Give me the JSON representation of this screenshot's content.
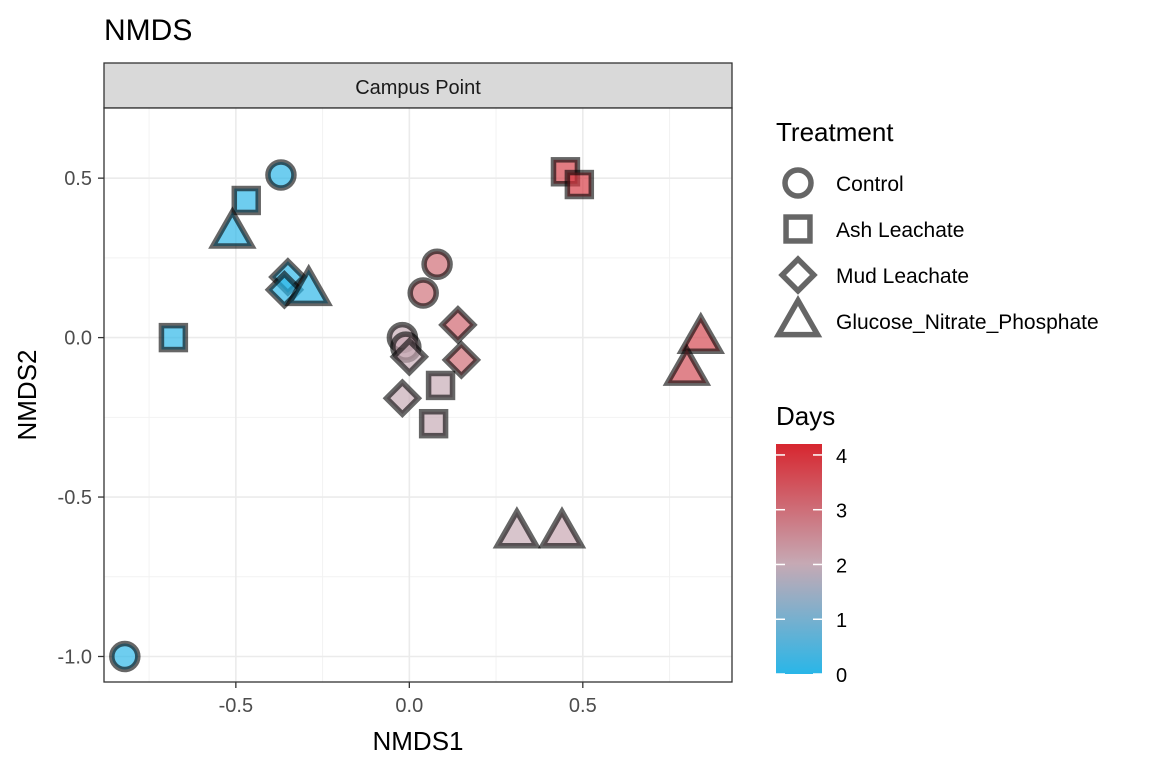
{
  "chart_data": {
    "type": "scatter",
    "title": "NMDS",
    "facet_label": "Campus Point",
    "xlabel": "NMDS1",
    "ylabel": "NMDS2",
    "xlim": [
      -0.88,
      0.93
    ],
    "ylim": [
      -1.08,
      0.72
    ],
    "x_ticks": [
      -0.5,
      0.0,
      0.5
    ],
    "x_tick_labels": [
      "-0.5",
      "0.0",
      "0.5"
    ],
    "y_ticks": [
      -1.0,
      -0.5,
      0.0,
      0.5
    ],
    "y_tick_labels": [
      "-1.0",
      "-0.5",
      "0.0",
      "0.5"
    ],
    "grid": true,
    "shape_legend": {
      "title": "Treatment",
      "placement": "right",
      "items": [
        {
          "label": "Control",
          "shape": "circle"
        },
        {
          "label": "Ash Leachate",
          "shape": "square"
        },
        {
          "label": "Mud Leachate",
          "shape": "diamond"
        },
        {
          "label": "Glucose_Nitrate_Phosphate",
          "shape": "triangle"
        }
      ]
    },
    "color_legend": {
      "title": "Days",
      "placement": "right",
      "min": 0,
      "max": 4.2,
      "ticks": [
        0,
        1,
        2,
        3,
        4
      ],
      "tick_labels": [
        "0",
        "1",
        "2",
        "3",
        "4"
      ],
      "low_color": "#29B6E8",
      "mid_color": "#C6A9B4",
      "high_color": "#D7262F"
    },
    "points": [
      {
        "x": -0.82,
        "y": -1.0,
        "treatment": "Control",
        "days": 0
      },
      {
        "x": -0.37,
        "y": 0.51,
        "treatment": "Control",
        "days": 0
      },
      {
        "x": 0.08,
        "y": 0.23,
        "treatment": "Control",
        "days": 3.1
      },
      {
        "x": 0.04,
        "y": 0.14,
        "treatment": "Control",
        "days": 3.0
      },
      {
        "x": -0.02,
        "y": 0.0,
        "treatment": "Control",
        "days": 2.0
      },
      {
        "x": -0.01,
        "y": -0.03,
        "treatment": "Control",
        "days": 2.1
      },
      {
        "x": -0.68,
        "y": 0.0,
        "treatment": "Ash Leachate",
        "days": 0
      },
      {
        "x": -0.47,
        "y": 0.43,
        "treatment": "Ash Leachate",
        "days": 0
      },
      {
        "x": 0.45,
        "y": 0.52,
        "treatment": "Ash Leachate",
        "days": 3.8
      },
      {
        "x": 0.49,
        "y": 0.48,
        "treatment": "Ash Leachate",
        "days": 3.9
      },
      {
        "x": 0.09,
        "y": -0.15,
        "treatment": "Ash Leachate",
        "days": 2.0
      },
      {
        "x": 0.07,
        "y": -0.27,
        "treatment": "Ash Leachate",
        "days": 2.0
      },
      {
        "x": -0.35,
        "y": 0.19,
        "treatment": "Mud Leachate",
        "days": 0
      },
      {
        "x": -0.36,
        "y": 0.15,
        "treatment": "Mud Leachate",
        "days": 0
      },
      {
        "x": 0.14,
        "y": 0.04,
        "treatment": "Mud Leachate",
        "days": 3.2
      },
      {
        "x": 0.15,
        "y": -0.07,
        "treatment": "Mud Leachate",
        "days": 3.1
      },
      {
        "x": 0.0,
        "y": -0.06,
        "treatment": "Mud Leachate",
        "days": 2.0
      },
      {
        "x": -0.02,
        "y": -0.19,
        "treatment": "Mud Leachate",
        "days": 2.0
      },
      {
        "x": -0.51,
        "y": 0.33,
        "treatment": "Glucose_Nitrate_Phosphate",
        "days": 0
      },
      {
        "x": -0.29,
        "y": 0.15,
        "treatment": "Glucose_Nitrate_Phosphate",
        "days": 0
      },
      {
        "x": 0.84,
        "y": 0.0,
        "treatment": "Glucose_Nitrate_Phosphate",
        "days": 3.7
      },
      {
        "x": 0.8,
        "y": -0.1,
        "treatment": "Glucose_Nitrate_Phosphate",
        "days": 3.6
      },
      {
        "x": 0.31,
        "y": -0.61,
        "treatment": "Glucose_Nitrate_Phosphate",
        "days": 2.0
      },
      {
        "x": 0.44,
        "y": -0.61,
        "treatment": "Glucose_Nitrate_Phosphate",
        "days": 2.1
      }
    ]
  }
}
